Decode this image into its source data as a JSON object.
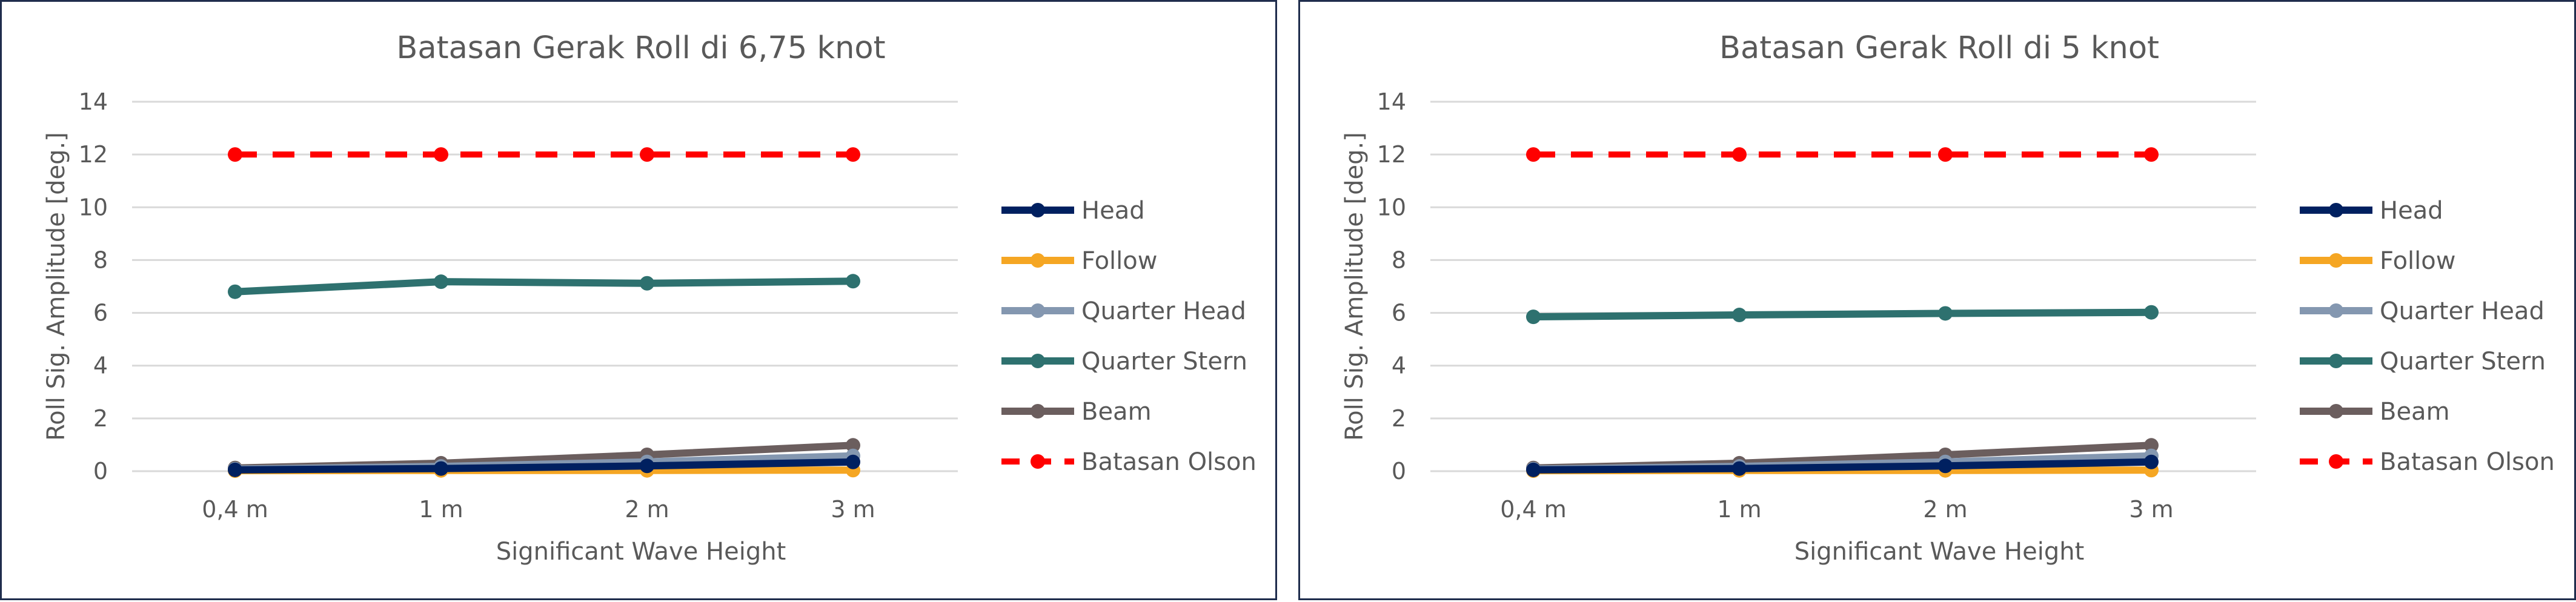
{
  "chart_data": [
    {
      "type": "line",
      "title": "Batasan Gerak Roll di 6,75 knot",
      "xlabel": "Significant Wave Height",
      "ylabel": "Roll Sig. Amplitude [deg.]",
      "categories": [
        "0,4 m",
        "1 m",
        "2 m",
        "3 m"
      ],
      "ylim": [
        0,
        14
      ],
      "yticks": [
        "0",
        "2",
        "4",
        "6",
        "8",
        "10",
        "12",
        "14"
      ],
      "grid": true,
      "legend_position": "right",
      "series": [
        {
          "name": "Head",
          "color": "#002060",
          "dashed": false,
          "values": [
            0.05,
            0.1,
            0.2,
            0.35
          ]
        },
        {
          "name": "Follow",
          "color": "#f5a623",
          "dashed": false,
          "values": [
            0.02,
            0.03,
            0.03,
            0.04
          ]
        },
        {
          "name": "Quarter Head",
          "color": "#8497b0",
          "dashed": false,
          "values": [
            0.08,
            0.18,
            0.35,
            0.58
          ]
        },
        {
          "name": "Quarter Stern",
          "color": "#2e716f",
          "dashed": false,
          "values": [
            6.8,
            7.18,
            7.12,
            7.2
          ]
        },
        {
          "name": "Beam",
          "color": "#6b5e5e",
          "dashed": false,
          "values": [
            0.12,
            0.3,
            0.62,
            0.98
          ]
        },
        {
          "name": "Batasan Olson",
          "color": "#ff0000",
          "dashed": true,
          "values": [
            12,
            12,
            12,
            12
          ]
        }
      ]
    },
    {
      "type": "line",
      "title": "Batasan Gerak Roll di 5 knot",
      "xlabel": "Significant Wave Height",
      "ylabel": "Roll Sig. Amplitude [deg.]",
      "categories": [
        "0,4 m",
        "1 m",
        "2 m",
        "3 m"
      ],
      "ylim": [
        0,
        14
      ],
      "yticks": [
        "0",
        "2",
        "4",
        "6",
        "8",
        "10",
        "12",
        "14"
      ],
      "grid": true,
      "legend_position": "right",
      "series": [
        {
          "name": "Head",
          "color": "#002060",
          "dashed": false,
          "values": [
            0.05,
            0.1,
            0.2,
            0.35
          ]
        },
        {
          "name": "Follow",
          "color": "#f5a623",
          "dashed": false,
          "values": [
            0.02,
            0.03,
            0.03,
            0.04
          ]
        },
        {
          "name": "Quarter Head",
          "color": "#8497b0",
          "dashed": false,
          "values": [
            0.08,
            0.18,
            0.35,
            0.58
          ]
        },
        {
          "name": "Quarter Stern",
          "color": "#2e716f",
          "dashed": false,
          "values": [
            5.85,
            5.92,
            5.98,
            6.02
          ]
        },
        {
          "name": "Beam",
          "color": "#6b5e5e",
          "dashed": false,
          "values": [
            0.12,
            0.3,
            0.62,
            0.98
          ]
        },
        {
          "name": "Batasan Olson",
          "color": "#ff0000",
          "dashed": true,
          "values": [
            12,
            12,
            12,
            12
          ]
        }
      ]
    }
  ]
}
